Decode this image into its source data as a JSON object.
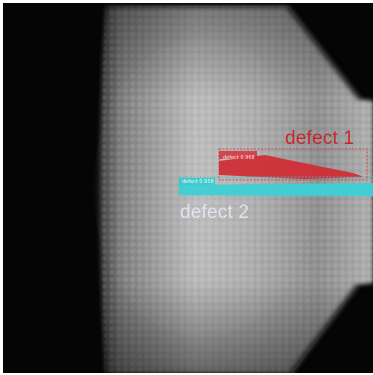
{
  "image": {
    "description_colors": {
      "background": "#050505",
      "cone_highlight": "#b9b9b9",
      "cone_shadow": "#5a5a5a",
      "defect_1_color": "#c8262d",
      "defect_2_color": "#37c9cf",
      "defect_2_label_color": "#dfe3ee"
    }
  },
  "annotations": {
    "defect_1": {
      "label": "defect 1",
      "box_label": "defect 0.968"
    },
    "defect_2": {
      "label": "defect 2",
      "box_label": "defect 0.958"
    }
  }
}
